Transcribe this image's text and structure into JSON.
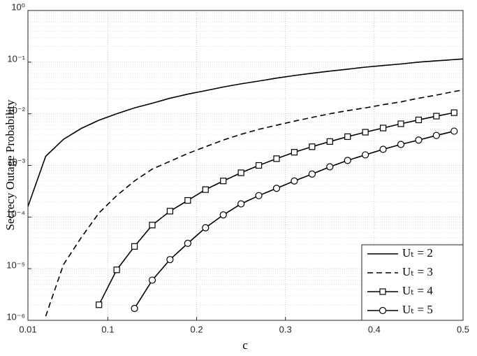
{
  "chart_data": {
    "type": "line",
    "xlabel": "c",
    "ylabel": "Secrecy Outage Probability",
    "x": [
      0.01,
      0.03,
      0.05,
      0.07,
      0.09,
      0.11,
      0.13,
      0.15,
      0.17,
      0.19,
      0.21,
      0.23,
      0.25,
      0.27,
      0.29,
      0.31,
      0.33,
      0.35,
      0.37,
      0.39,
      0.41,
      0.43,
      0.45,
      0.47,
      0.49,
      0.5
    ],
    "series": [
      {
        "name": "Uₜ = 2",
        "color": "#000000",
        "line_style": "solid",
        "marker": "none",
        "values": [
          0.00016,
          0.0015,
          0.0032,
          0.0052,
          0.0075,
          0.01,
          0.013,
          0.016,
          0.02,
          0.024,
          0.028,
          0.033,
          0.038,
          0.043,
          0.049,
          0.055,
          0.061,
          0.067,
          0.073,
          0.08,
          0.086,
          0.092,
          0.1,
          0.106,
          0.112,
          0.115
        ]
      },
      {
        "name": "Uₜ = 3",
        "color": "#000000",
        "line_style": "dashed",
        "marker": "none",
        "values": [
          null,
          1.2e-06,
          1.2e-05,
          4e-05,
          0.00012,
          0.00026,
          0.0005,
          0.00085,
          0.0012,
          0.0017,
          0.0023,
          0.0031,
          0.004,
          0.005,
          0.006,
          0.0072,
          0.0085,
          0.01,
          0.0115,
          0.013,
          0.015,
          0.017,
          0.02,
          0.023,
          0.027,
          0.029
        ]
      },
      {
        "name": "Uₜ = 4",
        "color": "#000000",
        "line_style": "solid",
        "marker": "square",
        "values": [
          null,
          null,
          null,
          null,
          2e-06,
          9.5e-06,
          2.7e-05,
          7e-05,
          0.00013,
          0.00021,
          0.00034,
          0.0005,
          0.00072,
          0.001,
          0.00135,
          0.0018,
          0.0023,
          0.0029,
          0.0036,
          0.0044,
          0.0053,
          0.0064,
          0.0076,
          0.009,
          0.0105,
          null
        ]
      },
      {
        "name": "Uₜ = 5",
        "color": "#000000",
        "line_style": "solid",
        "marker": "circle",
        "values": [
          null,
          null,
          null,
          null,
          null,
          null,
          1.7e-06,
          6e-06,
          1.5e-05,
          3.1e-05,
          6.2e-05,
          0.00011,
          0.00018,
          0.00026,
          0.00036,
          0.0005,
          0.00068,
          0.00094,
          0.00125,
          0.0016,
          0.00205,
          0.00255,
          0.0031,
          0.0038,
          0.0046,
          null
        ]
      }
    ],
    "xlim": [
      0.01,
      0.5
    ],
    "xticks": [
      0.01,
      0.1,
      0.2,
      0.3,
      0.4,
      0.5
    ],
    "ylim": [
      1e-06,
      1
    ],
    "log_y": true,
    "yticks": [
      {
        "value": 1e-06,
        "label": "10⁻⁶"
      },
      {
        "value": 1e-05,
        "label": "10⁻⁵"
      },
      {
        "value": 0.0001,
        "label": "10⁻⁴"
      },
      {
        "value": 0.001,
        "label": "10⁻³"
      },
      {
        "value": 0.01,
        "label": "10⁻²"
      },
      {
        "value": 0.1,
        "label": "10⁻¹"
      },
      {
        "value": 1,
        "label": "10⁰"
      }
    ],
    "grid": true,
    "minor_grid": true,
    "legend_position": "lower right"
  }
}
